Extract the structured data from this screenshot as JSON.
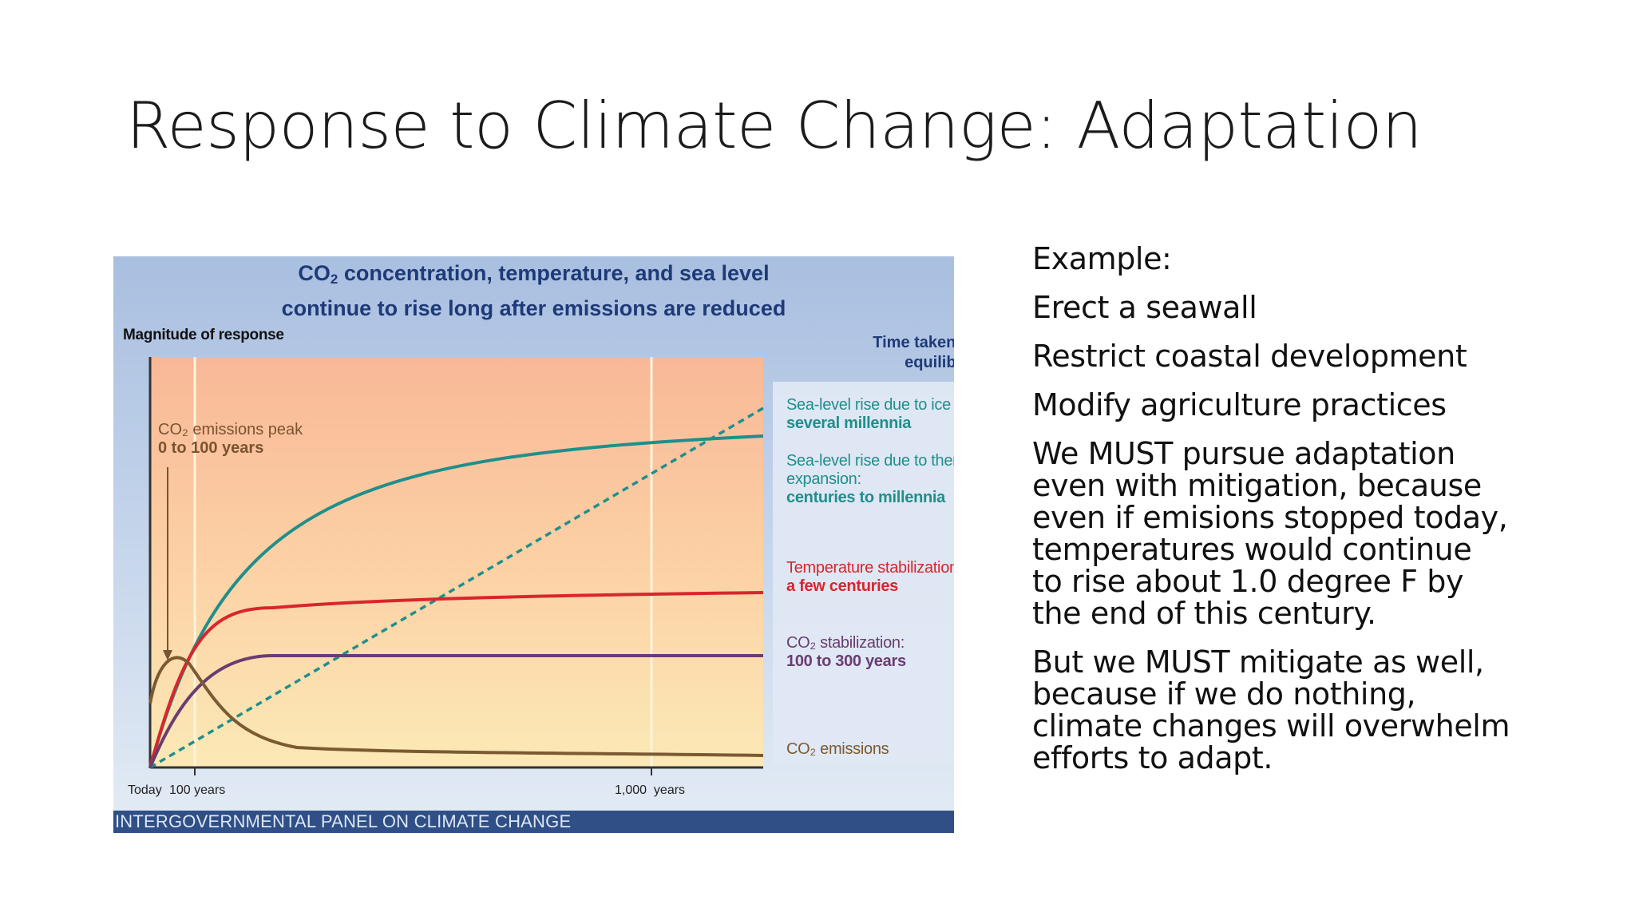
{
  "slide": {
    "title": "Response to Climate Change: Adaptation"
  },
  "figure": {
    "title_line1_pre": "CO",
    "title_line1_sub": "2",
    "title_line1_post": " concentration, temperature, and sea level",
    "title_line2": "continue to rise long after emissions are reduced",
    "y_axis_label": "Magnitude of response",
    "time_header_line1": "Time taken to reach",
    "time_header_line2": "equilibrium",
    "peak_label_line1": "CO₂ emissions peak",
    "peak_label_line2": "0 to 100 years",
    "labels": {
      "sea_ice_line1": "Sea-level rise due to ice melting:",
      "sea_ice_line2": "several millennia",
      "sea_thermal_line1": "Sea-level rise due to thermal",
      "sea_thermal_line2": "expansion:",
      "sea_thermal_line3": "centuries to millennia",
      "temp_line1": "Temperature stabilization:",
      "temp_line2": "a few centuries",
      "co2stab_line1": "CO₂ stabilization:",
      "co2stab_line2": "100 to 300 years",
      "co2em": "CO₂ emissions"
    },
    "ticks": {
      "today": "Today",
      "hundred": "100 years",
      "thousand": "1,000  years"
    },
    "footer": "INTERGOVERNMENTAL PANEL ON CLIMATE CHANGE",
    "colors": {
      "sea_ice": "#1f8f8c",
      "sea_thermal": "#1f8f8c",
      "temperature": "#d8262c",
      "co2_stabilization": "#6a3c72",
      "co2_emissions": "#7b5a32"
    }
  },
  "notes": {
    "example": "Example:",
    "item1": "Erect a seawall",
    "item2": "Restrict coastal development",
    "item3": "Modify agriculture practices",
    "para1_l1": "We MUST pursue adaptation",
    "para1_l2": "even with mitigation, because",
    "para1_l3": "even if emisions stopped today,",
    "para1_l4": "temperatures would continue",
    "para1_l5": "to rise about 1.0 degree F by",
    "para1_l6": "the end of this century.",
    "para2_l1": "But we MUST mitigate as well,",
    "para2_l2": "because if we do nothing,",
    "para2_l3": "climate changes will overwhelm",
    "para2_l4": "efforts to adapt."
  }
}
